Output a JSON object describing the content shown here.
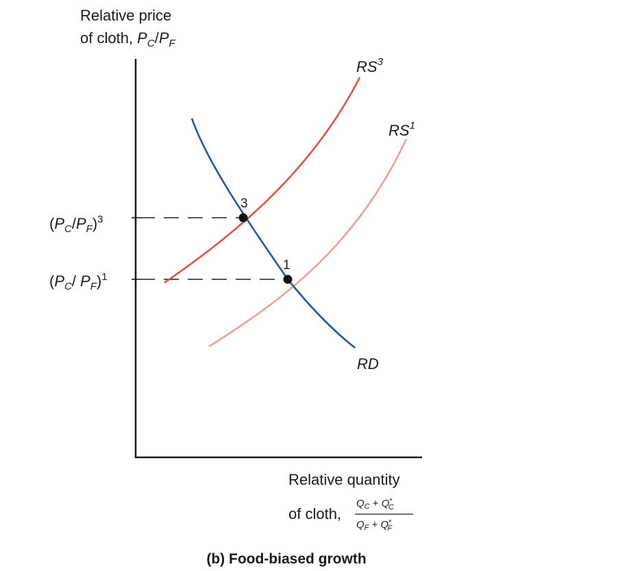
{
  "y_axis": {
    "label_line1": "Relative price",
    "label_line2_prefix": "of cloth, ",
    "label_var1": "P",
    "label_var1_sub": "C",
    "label_slash": "/",
    "label_var2": "P",
    "label_var2_sub": "F"
  },
  "x_axis": {
    "label_line1": "Relative quantity",
    "label_line2_prefix": "of cloth, ",
    "numerator_q1": "Q",
    "numerator_q1_sub": "C",
    "numerator_plus": " + ",
    "numerator_q2": "Q",
    "numerator_q2_sup": "*",
    "numerator_q2_sub": "C",
    "denominator_q1": "Q",
    "denominator_q1_sub": "F",
    "denominator_plus": " + ",
    "denominator_q2": "Q",
    "denominator_q2_sup": "*",
    "denominator_q2_sub": "F"
  },
  "price_levels": [
    {
      "open": "(",
      "p1": "P",
      "p1_sub": "C",
      "slash": "/",
      "p2": "P",
      "p2_sub": "F",
      "close": ")",
      "sup": "3"
    },
    {
      "open": "(",
      "p1": "P",
      "p1_sub": "C",
      "slash": "/ ",
      "p2": "P",
      "p2_sub": "F",
      "close": ")",
      "sup": "1"
    }
  ],
  "curves": {
    "rs3": {
      "base": "RS",
      "sup": "3",
      "color": "#e8513f"
    },
    "rs1": {
      "base": "RS",
      "sup": "1",
      "color": "#f2a08e"
    },
    "rd": {
      "label": "RD",
      "color": "#1f56a8"
    }
  },
  "points": [
    {
      "label": "3"
    },
    {
      "label": "1"
    }
  ],
  "caption": "(b) Food-biased growth",
  "colors": {
    "axis": "#1a1a1a",
    "dashes": "#1a1a1a",
    "point": "#111111"
  }
}
